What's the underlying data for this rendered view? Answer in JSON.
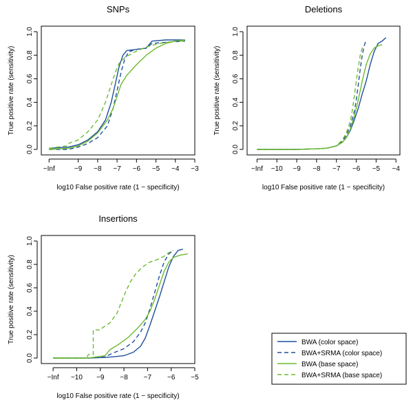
{
  "colors": {
    "blue": "#1f4e9c",
    "green": "#6aba2f"
  },
  "legend": {
    "entries": [
      {
        "label": "BWA (color space)",
        "color": "#1f4e9c",
        "dash": "solid"
      },
      {
        "label": "BWA+SRMA (color space)",
        "color": "#1f4e9c",
        "dash": "dashed"
      },
      {
        "label": "BWA (base space)",
        "color": "#6aba2f",
        "dash": "solid"
      },
      {
        "label": "BWA+SRMA (base space)",
        "color": "#6aba2f",
        "dash": "dashed"
      }
    ]
  },
  "chart_data": [
    {
      "type": "line",
      "title": "SNPs",
      "xlabel": "log10 False positive rate (1 − specificity)",
      "ylabel": "True positive rate (sensitivity)",
      "xlim": [
        -10.9,
        -3
      ],
      "ylim": [
        0,
        1
      ],
      "xticks": [
        -10.5,
        -9,
        -8,
        -7,
        -6,
        -5,
        -4,
        -3
      ],
      "xtick_labels": [
        "−Inf",
        "−9",
        "−8",
        "−7",
        "−6",
        "−5",
        "−4",
        "−3"
      ],
      "yticks": [
        0,
        0.2,
        0.4,
        0.6,
        0.8,
        1
      ],
      "ytick_labels": [
        "0.0",
        "0.2",
        "0.4",
        "0.6",
        "0.8",
        "1.0"
      ],
      "series": [
        {
          "name": "BWA (color space)",
          "color": "#1f4e9c",
          "dash": "solid",
          "points": [
            [
              -10.5,
              0.01
            ],
            [
              -9.5,
              0.02
            ],
            [
              -9,
              0.04
            ],
            [
              -8.5,
              0.08
            ],
            [
              -8,
              0.15
            ],
            [
              -7.6,
              0.25
            ],
            [
              -7.3,
              0.4
            ],
            [
              -7.1,
              0.55
            ],
            [
              -6.9,
              0.7
            ],
            [
              -6.7,
              0.8
            ],
            [
              -6.5,
              0.84
            ],
            [
              -6,
              0.85
            ],
            [
              -5.5,
              0.86
            ],
            [
              -5.2,
              0.92
            ],
            [
              -4.5,
              0.93
            ],
            [
              -3.5,
              0.93
            ]
          ]
        },
        {
          "name": "BWA+SRMA (color space)",
          "color": "#1f4e9c",
          "dash": "dashed",
          "points": [
            [
              -10.5,
              0.0
            ],
            [
              -9.5,
              0.0
            ],
            [
              -9,
              0.02
            ],
            [
              -8.5,
              0.05
            ],
            [
              -8,
              0.1
            ],
            [
              -7.5,
              0.2
            ],
            [
              -7.2,
              0.35
            ],
            [
              -7,
              0.5
            ],
            [
              -6.8,
              0.65
            ],
            [
              -6.6,
              0.77
            ],
            [
              -6.4,
              0.83
            ],
            [
              -6,
              0.85
            ],
            [
              -5.5,
              0.86
            ],
            [
              -5.2,
              0.9
            ],
            [
              -4.5,
              0.91
            ],
            [
              -3.5,
              0.92
            ]
          ]
        },
        {
          "name": "BWA (base space)",
          "color": "#6aba2f",
          "dash": "solid",
          "points": [
            [
              -10.5,
              0.0
            ],
            [
              -9.5,
              0.01
            ],
            [
              -9,
              0.03
            ],
            [
              -8.5,
              0.07
            ],
            [
              -8,
              0.14
            ],
            [
              -7.5,
              0.25
            ],
            [
              -7.2,
              0.35
            ],
            [
              -7,
              0.45
            ],
            [
              -6.8,
              0.55
            ],
            [
              -6.5,
              0.63
            ],
            [
              -6,
              0.72
            ],
            [
              -5.5,
              0.8
            ],
            [
              -5,
              0.86
            ],
            [
              -4.5,
              0.9
            ],
            [
              -4,
              0.92
            ],
            [
              -3.5,
              0.93
            ]
          ]
        },
        {
          "name": "BWA+SRMA (base space)",
          "color": "#6aba2f",
          "dash": "dashed",
          "points": [
            [
              -10.5,
              0.01
            ],
            [
              -9.6,
              0.03
            ],
            [
              -9.5,
              0.05
            ],
            [
              -9,
              0.08
            ],
            [
              -8.5,
              0.15
            ],
            [
              -8,
              0.25
            ],
            [
              -7.6,
              0.4
            ],
            [
              -7.3,
              0.55
            ],
            [
              -7.1,
              0.65
            ],
            [
              -6.9,
              0.73
            ],
            [
              -6.6,
              0.78
            ],
            [
              -6.2,
              0.82
            ],
            [
              -5.8,
              0.85
            ],
            [
              -5.3,
              0.88
            ],
            [
              -4.8,
              0.9
            ],
            [
              -4,
              0.92
            ],
            [
              -3.5,
              0.92
            ]
          ]
        }
      ]
    },
    {
      "type": "line",
      "title": "Deletions",
      "xlabel": "log10 False positive rate (1 − specificity)",
      "ylabel": "True positive rate (sensitivity)",
      "xlim": [
        -11.5,
        -3.8
      ],
      "ylim": [
        0,
        1
      ],
      "xticks": [
        -11,
        -10,
        -9,
        -8,
        -7,
        -6,
        -5,
        -4
      ],
      "xtick_labels": [
        "−Inf",
        "−10",
        "−9",
        "−8",
        "−7",
        "−6",
        "−5",
        "−4"
      ],
      "yticks": [
        0,
        0.2,
        0.4,
        0.6,
        0.8,
        1
      ],
      "ytick_labels": [
        "0.0",
        "0.2",
        "0.4",
        "0.6",
        "0.8",
        "1.0"
      ],
      "series": [
        {
          "name": "BWA (color space)",
          "color": "#1f4e9c",
          "dash": "solid",
          "points": [
            [
              -11,
              0.0
            ],
            [
              -9,
              0.0
            ],
            [
              -8,
              0.005
            ],
            [
              -7.5,
              0.01
            ],
            [
              -7,
              0.03
            ],
            [
              -6.7,
              0.06
            ],
            [
              -6.5,
              0.1
            ],
            [
              -6.3,
              0.16
            ],
            [
              -6.1,
              0.25
            ],
            [
              -5.9,
              0.35
            ],
            [
              -5.7,
              0.47
            ],
            [
              -5.5,
              0.58
            ],
            [
              -5.3,
              0.72
            ],
            [
              -5.1,
              0.83
            ],
            [
              -4.9,
              0.9
            ],
            [
              -4.7,
              0.92
            ],
            [
              -4.5,
              0.95
            ]
          ]
        },
        {
          "name": "BWA+SRMA (color space)",
          "color": "#1f4e9c",
          "dash": "dashed",
          "points": [
            [
              -11,
              0.0
            ],
            [
              -9,
              0.0
            ],
            [
              -8,
              0.005
            ],
            [
              -7.5,
              0.01
            ],
            [
              -7,
              0.03
            ],
            [
              -6.7,
              0.07
            ],
            [
              -6.5,
              0.12
            ],
            [
              -6.3,
              0.2
            ],
            [
              -6.1,
              0.32
            ],
            [
              -6,
              0.42
            ],
            [
              -5.9,
              0.55
            ],
            [
              -5.8,
              0.68
            ],
            [
              -5.7,
              0.8
            ],
            [
              -5.6,
              0.88
            ],
            [
              -5.5,
              0.93
            ]
          ]
        },
        {
          "name": "BWA (base space)",
          "color": "#6aba2f",
          "dash": "solid",
          "points": [
            [
              -11,
              0.0
            ],
            [
              -9,
              0.0
            ],
            [
              -8,
              0.005
            ],
            [
              -7.5,
              0.01
            ],
            [
              -7,
              0.03
            ],
            [
              -6.7,
              0.06
            ],
            [
              -6.5,
              0.1
            ],
            [
              -6.3,
              0.17
            ],
            [
              -6.1,
              0.28
            ],
            [
              -5.9,
              0.42
            ],
            [
              -5.7,
              0.58
            ],
            [
              -5.5,
              0.72
            ],
            [
              -5.3,
              0.81
            ],
            [
              -5.1,
              0.86
            ],
            [
              -4.9,
              0.88
            ],
            [
              -4.7,
              0.89
            ]
          ]
        },
        {
          "name": "BWA+SRMA (base space)",
          "color": "#6aba2f",
          "dash": "dashed",
          "points": [
            [
              -11,
              0.0
            ],
            [
              -9,
              0.0
            ],
            [
              -8,
              0.005
            ],
            [
              -7.5,
              0.01
            ],
            [
              -7,
              0.03
            ],
            [
              -6.7,
              0.08
            ],
            [
              -6.5,
              0.14
            ],
            [
              -6.3,
              0.24
            ],
            [
              -6.2,
              0.33
            ],
            [
              -6.1,
              0.45
            ],
            [
              -6,
              0.58
            ],
            [
              -5.9,
              0.7
            ],
            [
              -5.8,
              0.8
            ],
            [
              -5.7,
              0.86
            ],
            [
              -5.6,
              0.88
            ]
          ]
        }
      ]
    },
    {
      "type": "line",
      "title": "Insertions",
      "xlabel": "log10 False positive rate (1 − specificity)",
      "ylabel": "True positive rate (sensitivity)",
      "xlim": [
        -11.5,
        -5
      ],
      "ylim": [
        0,
        1
      ],
      "xticks": [
        -11,
        -10,
        -9,
        -8,
        -7,
        -6,
        -5
      ],
      "xtick_labels": [
        "−Inf",
        "−10",
        "−9",
        "−8",
        "−7",
        "−6",
        "−5"
      ],
      "yticks": [
        0,
        0.2,
        0.4,
        0.6,
        0.8,
        1
      ],
      "ytick_labels": [
        "0.0",
        "0.2",
        "0.4",
        "0.6",
        "0.8",
        "1.0"
      ],
      "series": [
        {
          "name": "BWA (color space)",
          "color": "#1f4e9c",
          "dash": "solid",
          "points": [
            [
              -11,
              0.0
            ],
            [
              -9.5,
              0.0
            ],
            [
              -8.8,
              0.005
            ],
            [
              -8.5,
              0.01
            ],
            [
              -8,
              0.02
            ],
            [
              -7.6,
              0.05
            ],
            [
              -7.3,
              0.1
            ],
            [
              -7.1,
              0.17
            ],
            [
              -6.9,
              0.28
            ],
            [
              -6.7,
              0.4
            ],
            [
              -6.5,
              0.52
            ],
            [
              -6.3,
              0.65
            ],
            [
              -6.1,
              0.78
            ],
            [
              -5.9,
              0.87
            ],
            [
              -5.7,
              0.92
            ],
            [
              -5.5,
              0.93
            ]
          ]
        },
        {
          "name": "BWA+SRMA (color space)",
          "color": "#1f4e9c",
          "dash": "dashed",
          "points": [
            [
              -11,
              0.0
            ],
            [
              -9.5,
              0.0
            ],
            [
              -8.8,
              0.01
            ],
            [
              -8.5,
              0.04
            ],
            [
              -8,
              0.08
            ],
            [
              -7.6,
              0.14
            ],
            [
              -7.3,
              0.22
            ],
            [
              -7.1,
              0.3
            ],
            [
              -6.9,
              0.42
            ],
            [
              -6.7,
              0.56
            ],
            [
              -6.5,
              0.7
            ],
            [
              -6.3,
              0.82
            ],
            [
              -6.1,
              0.89
            ],
            [
              -5.9,
              0.92
            ]
          ]
        },
        {
          "name": "BWA (base space)",
          "color": "#6aba2f",
          "dash": "solid",
          "points": [
            [
              -11,
              0.0
            ],
            [
              -9.5,
              0.0
            ],
            [
              -8.8,
              0.02
            ],
            [
              -8.6,
              0.07
            ],
            [
              -8.2,
              0.12
            ],
            [
              -7.8,
              0.18
            ],
            [
              -7.4,
              0.26
            ],
            [
              -7.1,
              0.33
            ],
            [
              -6.9,
              0.4
            ],
            [
              -6.7,
              0.5
            ],
            [
              -6.5,
              0.62
            ],
            [
              -6.3,
              0.74
            ],
            [
              -6.1,
              0.82
            ],
            [
              -5.9,
              0.86
            ],
            [
              -5.6,
              0.88
            ],
            [
              -5.3,
              0.89
            ]
          ]
        },
        {
          "name": "BWA+SRMA (base space)",
          "color": "#6aba2f",
          "dash": "dashed",
          "points": [
            [
              -11,
              0.0
            ],
            [
              -9.6,
              0.0
            ],
            [
              -9.5,
              0.03
            ],
            [
              -9.3,
              0.03
            ],
            [
              -9.3,
              0.24
            ],
            [
              -9,
              0.24
            ],
            [
              -8.9,
              0.26
            ],
            [
              -8.6,
              0.3
            ],
            [
              -8.3,
              0.38
            ],
            [
              -8.1,
              0.48
            ],
            [
              -7.9,
              0.58
            ],
            [
              -7.7,
              0.66
            ],
            [
              -7.5,
              0.72
            ],
            [
              -7.2,
              0.78
            ],
            [
              -6.9,
              0.82
            ],
            [
              -6.6,
              0.84
            ],
            [
              -6.3,
              0.87
            ],
            [
              -6.1,
              0.9
            ],
            [
              -5.9,
              0.92
            ]
          ]
        }
      ]
    }
  ]
}
